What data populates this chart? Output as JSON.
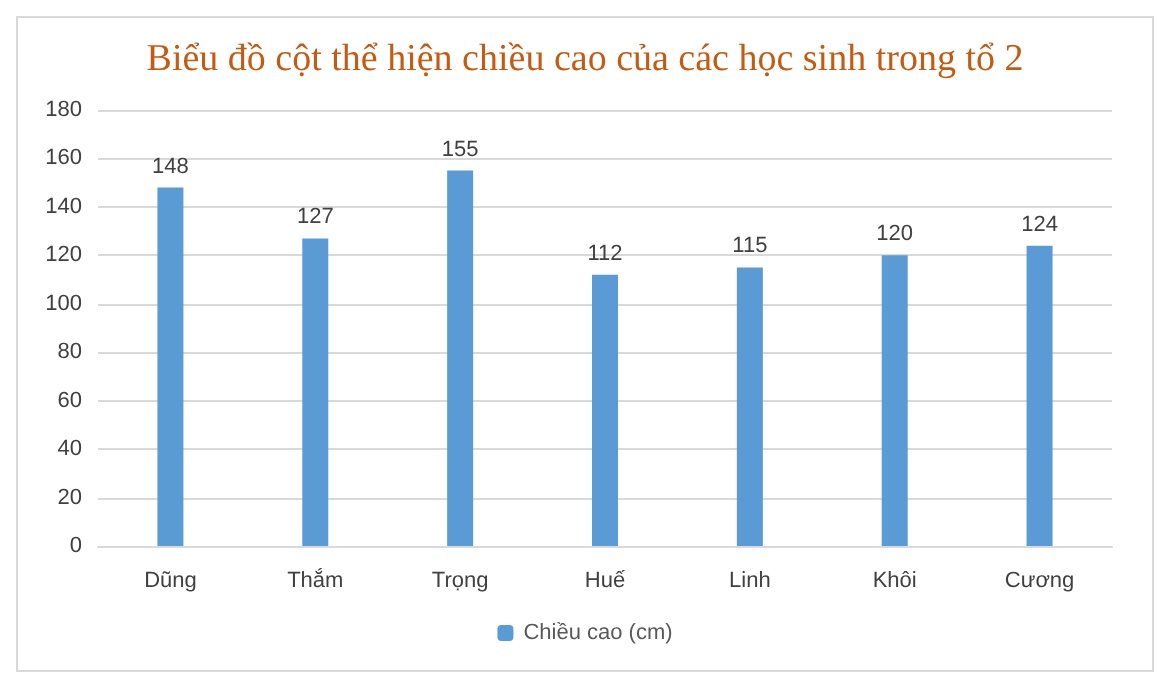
{
  "chart_data": {
    "type": "bar",
    "title": "Biểu đồ cột thể hiện chiều cao của các học sinh trong tổ 2",
    "categories": [
      "Dũng",
      "Thắm",
      "Trọng",
      "Huế",
      "Linh",
      "Khôi",
      "Cương"
    ],
    "series": [
      {
        "name": "Chiều cao (cm)",
        "color": "#5b9bd5",
        "values": [
          148,
          127,
          155,
          112,
          115,
          120,
          124
        ]
      }
    ],
    "ylim": [
      0,
      180
    ],
    "yticks": [
      0,
      20,
      40,
      60,
      80,
      100,
      120,
      140,
      160,
      180
    ],
    "grid": "y",
    "legend": "bottom",
    "data_labels": true
  }
}
